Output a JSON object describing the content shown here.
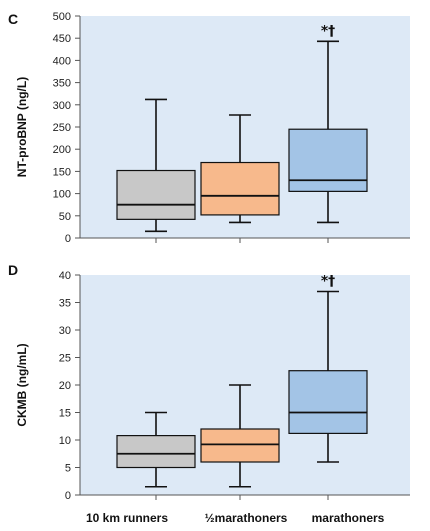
{
  "chart_data": [
    {
      "type": "box",
      "panel_label": "C",
      "ylabel": "NT-proBNP (ng/L)",
      "ylim": [
        0,
        500
      ],
      "yticks": [
        0,
        50,
        100,
        150,
        200,
        250,
        300,
        350,
        400,
        450,
        500
      ],
      "categories": [
        "10 km runners",
        "½marathoners",
        "marathoners"
      ],
      "colors": [
        "#c8c8c8",
        "#f7b98c",
        "#a3c4e6"
      ],
      "background": "#dde9f6",
      "boxes": [
        {
          "min": 15,
          "q1": 42,
          "median": 75,
          "q3": 152,
          "max": 312
        },
        {
          "min": 35,
          "q1": 52,
          "median": 95,
          "q3": 170,
          "max": 277
        },
        {
          "min": 35,
          "q1": 105,
          "median": 130,
          "q3": 245,
          "max": 443
        }
      ],
      "annotations": [
        {
          "category": "marathoners",
          "text": "*†"
        }
      ]
    },
    {
      "type": "box",
      "panel_label": "D",
      "ylabel": "CKMB (ng/mL)",
      "ylim": [
        0,
        40
      ],
      "yticks": [
        0,
        5,
        10,
        15,
        20,
        25,
        30,
        35,
        40
      ],
      "categories": [
        "10 km runners",
        "½marathoners",
        "marathoners"
      ],
      "colors": [
        "#c8c8c8",
        "#f7b98c",
        "#a3c4e6"
      ],
      "background": "#dde9f6",
      "boxes": [
        {
          "min": 1.5,
          "q1": 5,
          "median": 7.5,
          "q3": 10.8,
          "max": 15
        },
        {
          "min": 1.5,
          "q1": 6,
          "median": 9.2,
          "q3": 12,
          "max": 20
        },
        {
          "min": 6,
          "q1": 11.2,
          "median": 15,
          "q3": 22.6,
          "max": 37
        }
      ],
      "annotations": [
        {
          "category": "marathoners",
          "text": "*†"
        }
      ]
    }
  ]
}
